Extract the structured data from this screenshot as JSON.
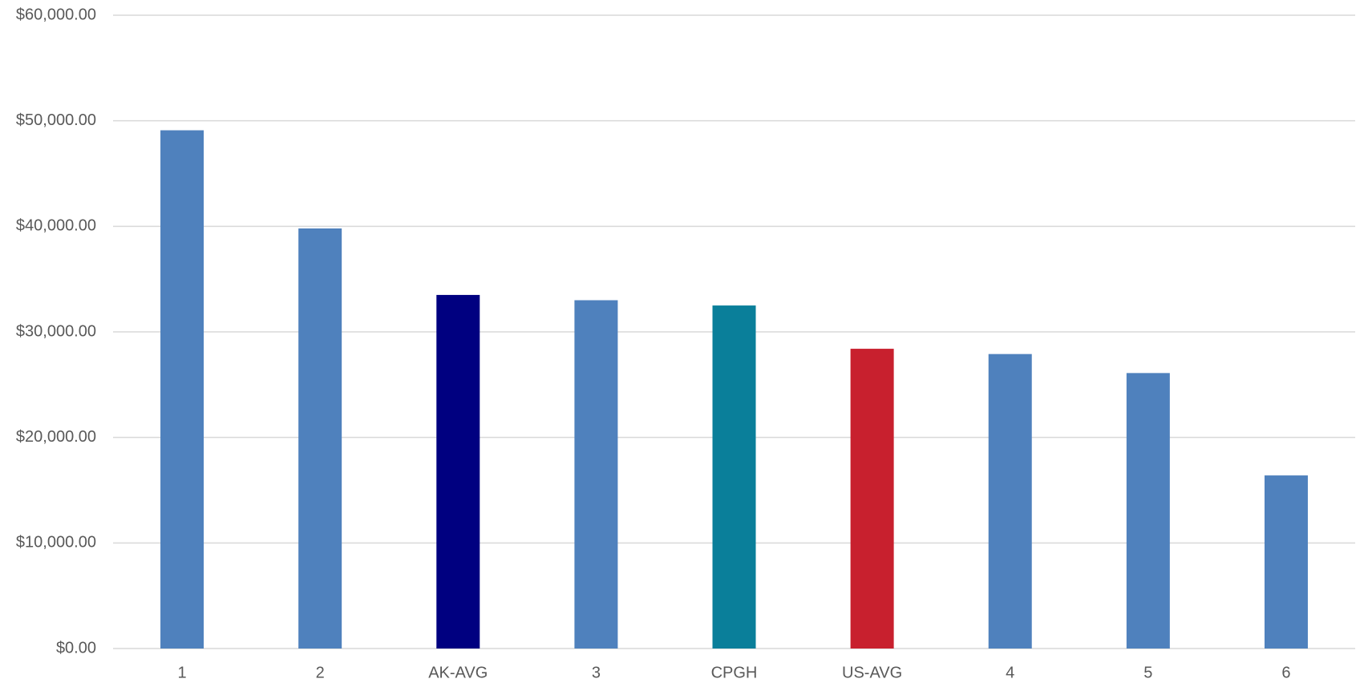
{
  "chart_data": {
    "type": "bar",
    "categories": [
      "1",
      "2",
      "AK-AVG",
      "3",
      "CPGH",
      "US-AVG",
      "4",
      "5",
      "6"
    ],
    "values": [
      49100,
      39800,
      33500,
      33000,
      32500,
      28400,
      27900,
      26100,
      16400
    ],
    "colors": [
      "#4f81bd",
      "#4f81bd",
      "#000080",
      "#4f81bd",
      "#0a7f9a",
      "#c8202e",
      "#4f81bd",
      "#4f81bd",
      "#4f81bd"
    ],
    "ylim": [
      0,
      60000
    ],
    "yticks": [
      {
        "value": 0,
        "label": "$0.00"
      },
      {
        "value": 10000,
        "label": "$10,000.00"
      },
      {
        "value": 20000,
        "label": "$20,000.00"
      },
      {
        "value": 30000,
        "label": "$30,000.00"
      },
      {
        "value": 40000,
        "label": "$40,000.00"
      },
      {
        "value": 50000,
        "label": "$50,000.00"
      },
      {
        "value": 60000,
        "label": "$60,000.00"
      }
    ],
    "grid": true
  }
}
